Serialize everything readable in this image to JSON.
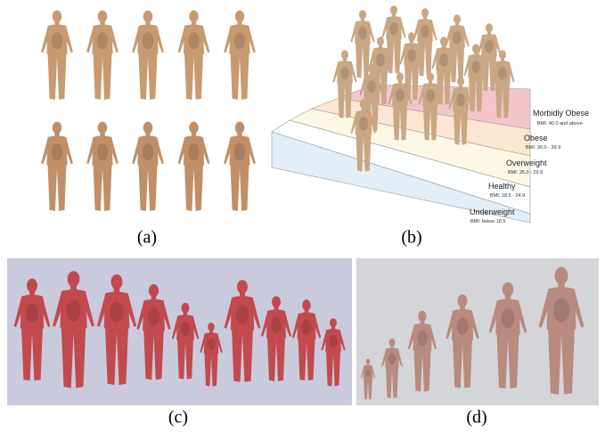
{
  "panels": [
    {
      "label": "(a)"
    },
    {
      "label": "(b)",
      "bmi_categories": [
        {
          "name": "Morbidly Obese",
          "range": "BMI: 40.0 and above"
        },
        {
          "name": "Obese",
          "range": "BMI: 30.0 - 39.9"
        },
        {
          "name": "Overweight",
          "range": "BMI: 25.0 - 29.9"
        },
        {
          "name": "Healthy",
          "range": "BMI: 18.5 - 24.9"
        },
        {
          "name": "Underweight",
          "range": "BMI: below 18.5"
        }
      ]
    },
    {
      "label": "(c)"
    },
    {
      "label": "(d)"
    }
  ]
}
